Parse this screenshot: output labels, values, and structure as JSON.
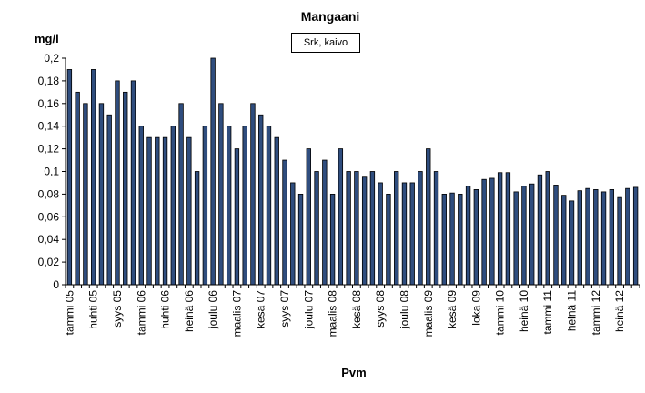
{
  "chart_data": {
    "type": "bar",
    "title": "Mangaani",
    "ylabel": "mg/l",
    "xlabel": "Pvm",
    "legend": "Srk, kaivo",
    "legend_position": "top-center",
    "ylim": [
      0,
      0.2
    ],
    "ytick_step": 0.02,
    "grid": false,
    "colors": {
      "bar_fill": "#2f4d7e",
      "bar_edge": "#000000"
    },
    "tick_labels": [
      "tammi 05",
      "huhti 05",
      "syys 05",
      "tammi 06",
      "huhti 06",
      "heinä 06",
      "joulu 06",
      "maalis 07",
      "kesä 07",
      "syys 07",
      "joulu 07",
      "maalis 08",
      "kesä 08",
      "syys 08",
      "joulu 08",
      "maalis 09",
      "kesä 09",
      "loka 09",
      "tammi 10",
      "heinä 10",
      "tammi 11",
      "heinä 11",
      "tammi 12",
      "heinä 12"
    ],
    "values": [
      0.19,
      0.17,
      0.16,
      0.19,
      0.16,
      0.15,
      0.18,
      0.17,
      0.18,
      0.14,
      0.13,
      0.13,
      0.13,
      0.14,
      0.16,
      0.13,
      0.1,
      0.14,
      0.2,
      0.16,
      0.14,
      0.12,
      0.14,
      0.16,
      0.15,
      0.14,
      0.13,
      0.11,
      0.09,
      0.08,
      0.12,
      0.1,
      0.11,
      0.08,
      0.12,
      0.1,
      0.1,
      0.095,
      0.1,
      0.09,
      0.08,
      0.1,
      0.09,
      0.09,
      0.1,
      0.12,
      0.1,
      0.08,
      0.081,
      0.08,
      0.087,
      0.084,
      0.093,
      0.094,
      0.099,
      0.099,
      0.082,
      0.087,
      0.089,
      0.097,
      0.1,
      0.088,
      0.079,
      0.074,
      0.083,
      0.085,
      0.084,
      0.082,
      0.084,
      0.077,
      0.085,
      0.086
    ]
  }
}
